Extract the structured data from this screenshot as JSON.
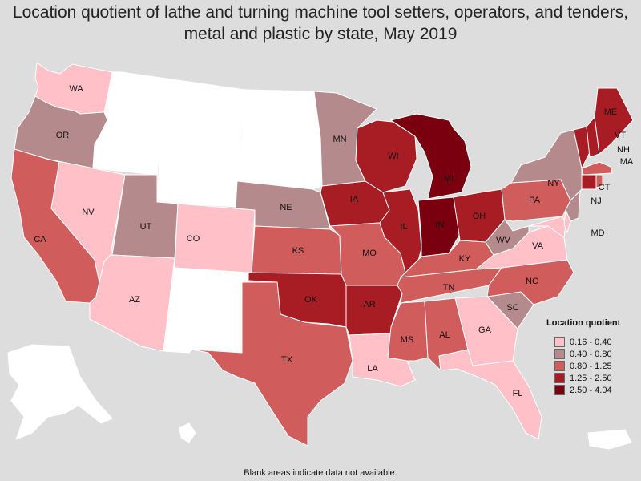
{
  "title": "Location quotient of lathe and turning machine tool setters, operators, and tenders, metal and plastic by state, May 2019",
  "legend": {
    "title": "Location quotient",
    "items": [
      {
        "label": "0.16 - 0.40",
        "color": "#ffc0c8"
      },
      {
        "label": "0.40 - 0.80",
        "color": "#b58a8c"
      },
      {
        "label": "0.80 - 1.25",
        "color": "#d05c5c"
      },
      {
        "label": "1.25 - 2.50",
        "color": "#a81c24"
      },
      {
        "label": "2.50 - 4.04",
        "color": "#7a0010"
      }
    ]
  },
  "footnote": "Blank areas indicate data not available.",
  "no_data_color": "#ffffff",
  "states": {
    "WA": 0,
    "OR": 1,
    "CA": 2,
    "NV": 0,
    "AZ": 0,
    "UT": 1,
    "CO": 0,
    "NE": 1,
    "KS": 2,
    "OK": 3,
    "TX": 2,
    "MN": 1,
    "IA": 3,
    "MO": 2,
    "AR": 3,
    "LA": 0,
    "WI": 3,
    "IL": 3,
    "MI": 4,
    "IN": 4,
    "OH": 3,
    "KY": 2,
    "TN": 2,
    "MS": 2,
    "AL": 2,
    "GA": 0,
    "FL": 0,
    "SC": 1,
    "NC": 2,
    "VA": 0,
    "WV": 1,
    "PA": 2,
    "NY": 1,
    "NJ": 1,
    "MD": 0,
    "CT": 3,
    "MA": 2,
    "VT": 3,
    "NH": 3,
    "ME": 3,
    "DE": 0,
    "RI": 2,
    "ID": null,
    "MT": null,
    "WY": null,
    "ND": null,
    "SD": null,
    "NM": null,
    "AK": null,
    "HI": null,
    "PR": null
  },
  "state_labels": [
    "WA",
    "OR",
    "CA",
    "NV",
    "AZ",
    "UT",
    "CO",
    "NE",
    "KS",
    "OK",
    "TX",
    "MN",
    "IA",
    "MO",
    "AR",
    "LA",
    "WI",
    "IL",
    "MI",
    "IN",
    "OH",
    "KY",
    "TN",
    "MS",
    "AL",
    "GA",
    "FL",
    "SC",
    "NC",
    "VA",
    "WV",
    "PA",
    "NY",
    "NJ",
    "MD",
    "CT",
    "MA",
    "VT",
    "NH",
    "ME"
  ]
}
